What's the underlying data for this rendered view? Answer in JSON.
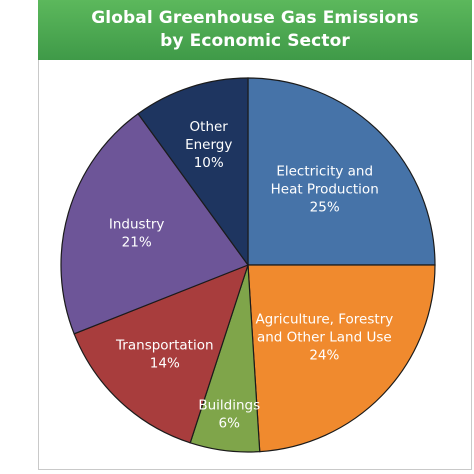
{
  "chart_data": {
    "type": "pie",
    "title_lines": [
      "Global Greenhouse Gas Emissions",
      "by Economic Sector"
    ],
    "unit": "%",
    "slices": [
      {
        "label_lines": [
          "Electricity and",
          "Heat Production"
        ],
        "value": 25,
        "value_text": "25%",
        "color": "#4673a8"
      },
      {
        "label_lines": [
          "Agriculture, Forestry",
          "and Other Land Use"
        ],
        "value": 24,
        "value_text": "24%",
        "color": "#f08a2e"
      },
      {
        "label_lines": [
          "Buildings"
        ],
        "value": 6,
        "value_text": "6%",
        "color": "#7fa54a"
      },
      {
        "label_lines": [
          "Transportation"
        ],
        "value": 14,
        "value_text": "14%",
        "color": "#a83d3d"
      },
      {
        "label_lines": [
          "Industry"
        ],
        "value": 21,
        "value_text": "21%",
        "color": "#6d5598"
      },
      {
        "label_lines": [
          "Other",
          "Energy"
        ],
        "value": 10,
        "value_text": "10%",
        "color": "#1e3560"
      }
    ]
  }
}
